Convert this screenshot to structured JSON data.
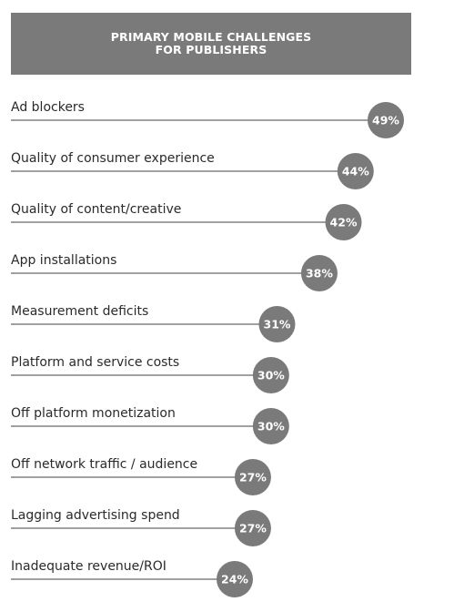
{
  "chart_data": {
    "type": "bar",
    "title_line1": "PRIMARY MOBILE CHALLENGES",
    "title_line2": "FOR PUBLISHERS",
    "categories": [
      "Ad blockers",
      "Quality of consumer experience",
      "Quality of content/creative",
      "App installations",
      "Measurement deficits",
      "Platform and service costs",
      "Off platform monetization",
      "Off network traffic / audience",
      "Lagging advertising spend",
      "Inadequate revenue/ROI"
    ],
    "values": [
      49,
      44,
      42,
      38,
      31,
      30,
      30,
      27,
      27,
      24
    ],
    "value_labels": [
      "49%",
      "44%",
      "42%",
      "38%",
      "31%",
      "30%",
      "30%",
      "27%",
      "27%",
      "24%"
    ],
    "unit": "%",
    "xlim": [
      0,
      50
    ],
    "grid": false,
    "colors": {
      "header_bg": "#7a7a7a",
      "bar_line": "#808080",
      "marker": "#7a7a7a",
      "marker_text": "#ffffff",
      "label_text": "#2a2a2a"
    }
  }
}
